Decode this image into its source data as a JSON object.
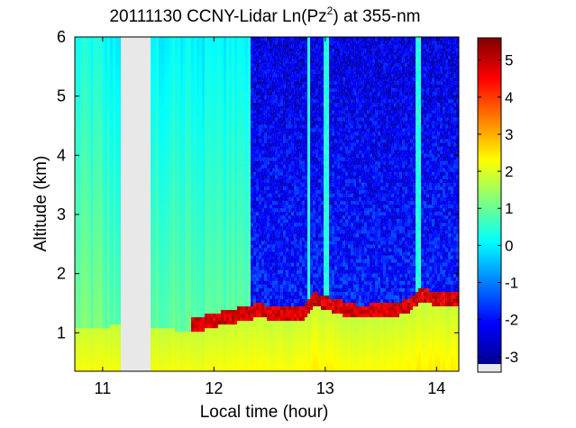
{
  "chart_data": {
    "type": "heatmap",
    "title_main": "20111130 CCNY-Lidar Ln(Pz",
    "title_sup": "2",
    "title_tail": ") at 355-nm",
    "xlabel": "Local time (hour)",
    "ylabel": "Altitude (km)",
    "xlim": [
      10.75,
      14.2
    ],
    "ylim": [
      0.35,
      6.0
    ],
    "xticks": [
      11,
      12,
      13,
      14
    ],
    "yticks": [
      1,
      2,
      3,
      4,
      5,
      6
    ],
    "colorbar": {
      "range": [
        -3.2,
        5.6
      ],
      "ticks": [
        -3,
        -2,
        -1,
        0,
        1,
        2,
        3,
        4,
        5
      ],
      "colormap": "jet",
      "nodata_color": "#e8e8e8"
    },
    "no_data_intervals": [
      [
        11.17,
        11.43
      ]
    ],
    "boundary_layer_top_km": [
      {
        "time": 10.95,
        "alt": 1.2
      },
      {
        "time": 11.1,
        "alt": 1.25
      },
      {
        "time": 11.85,
        "alt": 1.15
      },
      {
        "time": 12.0,
        "alt": 1.22
      },
      {
        "time": 12.2,
        "alt": 1.3
      },
      {
        "time": 12.4,
        "alt": 1.38
      },
      {
        "time": 12.6,
        "alt": 1.33
      },
      {
        "time": 12.8,
        "alt": 1.32
      },
      {
        "time": 12.9,
        "alt": 1.58
      },
      {
        "time": 13.1,
        "alt": 1.45
      },
      {
        "time": 13.3,
        "alt": 1.36
      },
      {
        "time": 13.6,
        "alt": 1.38
      },
      {
        "time": 13.75,
        "alt": 1.47
      },
      {
        "time": 13.85,
        "alt": 1.63
      },
      {
        "time": 14.2,
        "alt": 1.55
      }
    ],
    "clear_sky_start_time": 12.32
  }
}
